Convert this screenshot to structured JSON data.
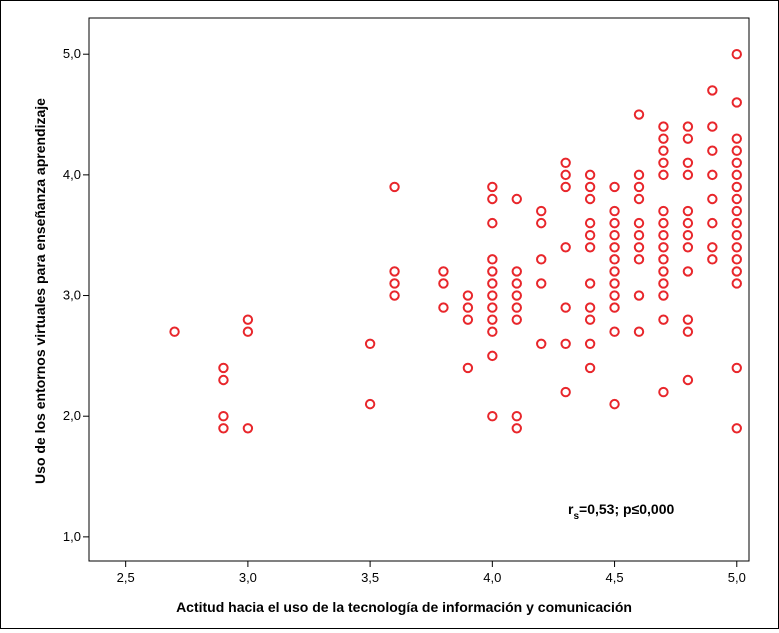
{
  "chart_data": {
    "type": "scatter",
    "xlabel": "Actitud hacia el uso de la tecnología de información y comunicación",
    "ylabel": "Uso de los entornos virtuales para enseñanza aprendizaje",
    "xlim": [
      2.35,
      5.05
    ],
    "ylim": [
      0.8,
      5.3
    ],
    "x_ticks": [
      "2,5",
      "3,0",
      "3,5",
      "4,0",
      "4,5",
      "5,0"
    ],
    "x_tick_values": [
      2.5,
      3.0,
      3.5,
      4.0,
      4.5,
      5.0
    ],
    "y_ticks": [
      "1,0",
      "2,0",
      "3,0",
      "4,0",
      "5,0"
    ],
    "y_tick_values": [
      1.0,
      2.0,
      3.0,
      4.0,
      5.0
    ],
    "grid": false,
    "marker_color": "#e8262b",
    "annotation": {
      "main": "r",
      "sub": "s",
      "rest": "=0,53; p≤0,000"
    },
    "points": [
      {
        "x": 2.7,
        "y": 2.7
      },
      {
        "x": 2.9,
        "y": 2.4
      },
      {
        "x": 2.9,
        "y": 2.3
      },
      {
        "x": 2.9,
        "y": 2.0
      },
      {
        "x": 2.9,
        "y": 1.9
      },
      {
        "x": 3.0,
        "y": 2.8
      },
      {
        "x": 3.0,
        "y": 2.7
      },
      {
        "x": 3.0,
        "y": 1.9
      },
      {
        "x": 3.5,
        "y": 2.6
      },
      {
        "x": 3.5,
        "y": 2.1
      },
      {
        "x": 3.6,
        "y": 3.9
      },
      {
        "x": 3.6,
        "y": 3.2
      },
      {
        "x": 3.6,
        "y": 3.1
      },
      {
        "x": 3.6,
        "y": 3.0
      },
      {
        "x": 3.8,
        "y": 3.2
      },
      {
        "x": 3.8,
        "y": 3.1
      },
      {
        "x": 3.8,
        "y": 2.9
      },
      {
        "x": 3.9,
        "y": 3.0
      },
      {
        "x": 3.9,
        "y": 2.9
      },
      {
        "x": 3.9,
        "y": 2.8
      },
      {
        "x": 3.9,
        "y": 2.4
      },
      {
        "x": 4.0,
        "y": 3.9
      },
      {
        "x": 4.0,
        "y": 3.8
      },
      {
        "x": 4.0,
        "y": 3.6
      },
      {
        "x": 4.0,
        "y": 3.3
      },
      {
        "x": 4.0,
        "y": 3.2
      },
      {
        "x": 4.0,
        "y": 3.1
      },
      {
        "x": 4.0,
        "y": 3.0
      },
      {
        "x": 4.0,
        "y": 2.9
      },
      {
        "x": 4.0,
        "y": 2.8
      },
      {
        "x": 4.0,
        "y": 2.7
      },
      {
        "x": 4.0,
        "y": 2.5
      },
      {
        "x": 4.0,
        "y": 2.0
      },
      {
        "x": 4.1,
        "y": 3.8
      },
      {
        "x": 4.1,
        "y": 3.2
      },
      {
        "x": 4.1,
        "y": 3.1
      },
      {
        "x": 4.1,
        "y": 3.0
      },
      {
        "x": 4.1,
        "y": 2.9
      },
      {
        "x": 4.1,
        "y": 2.8
      },
      {
        "x": 4.1,
        "y": 2.0
      },
      {
        "x": 4.1,
        "y": 1.9
      },
      {
        "x": 4.2,
        "y": 3.7
      },
      {
        "x": 4.2,
        "y": 3.6
      },
      {
        "x": 4.2,
        "y": 3.3
      },
      {
        "x": 4.2,
        "y": 3.1
      },
      {
        "x": 4.2,
        "y": 2.6
      },
      {
        "x": 4.3,
        "y": 4.1
      },
      {
        "x": 4.3,
        "y": 4.0
      },
      {
        "x": 4.3,
        "y": 3.9
      },
      {
        "x": 4.3,
        "y": 3.4
      },
      {
        "x": 4.3,
        "y": 2.9
      },
      {
        "x": 4.3,
        "y": 2.6
      },
      {
        "x": 4.3,
        "y": 2.2
      },
      {
        "x": 4.4,
        "y": 4.0
      },
      {
        "x": 4.4,
        "y": 3.9
      },
      {
        "x": 4.4,
        "y": 3.8
      },
      {
        "x": 4.4,
        "y": 3.6
      },
      {
        "x": 4.4,
        "y": 3.5
      },
      {
        "x": 4.4,
        "y": 3.4
      },
      {
        "x": 4.4,
        "y": 3.1
      },
      {
        "x": 4.4,
        "y": 2.9
      },
      {
        "x": 4.4,
        "y": 2.8
      },
      {
        "x": 4.4,
        "y": 2.6
      },
      {
        "x": 4.4,
        "y": 2.4
      },
      {
        "x": 4.5,
        "y": 3.9
      },
      {
        "x": 4.5,
        "y": 3.7
      },
      {
        "x": 4.5,
        "y": 3.6
      },
      {
        "x": 4.5,
        "y": 3.5
      },
      {
        "x": 4.5,
        "y": 3.4
      },
      {
        "x": 4.5,
        "y": 3.3
      },
      {
        "x": 4.5,
        "y": 3.2
      },
      {
        "x": 4.5,
        "y": 3.1
      },
      {
        "x": 4.5,
        "y": 3.0
      },
      {
        "x": 4.5,
        "y": 2.9
      },
      {
        "x": 4.5,
        "y": 2.7
      },
      {
        "x": 4.5,
        "y": 2.1
      },
      {
        "x": 4.6,
        "y": 4.5
      },
      {
        "x": 4.6,
        "y": 4.0
      },
      {
        "x": 4.6,
        "y": 3.9
      },
      {
        "x": 4.6,
        "y": 3.8
      },
      {
        "x": 4.6,
        "y": 3.6
      },
      {
        "x": 4.6,
        "y": 3.5
      },
      {
        "x": 4.6,
        "y": 3.4
      },
      {
        "x": 4.6,
        "y": 3.3
      },
      {
        "x": 4.6,
        "y": 3.0
      },
      {
        "x": 4.6,
        "y": 2.7
      },
      {
        "x": 4.7,
        "y": 4.4
      },
      {
        "x": 4.7,
        "y": 4.3
      },
      {
        "x": 4.7,
        "y": 4.2
      },
      {
        "x": 4.7,
        "y": 4.1
      },
      {
        "x": 4.7,
        "y": 4.0
      },
      {
        "x": 4.7,
        "y": 3.7
      },
      {
        "x": 4.7,
        "y": 3.6
      },
      {
        "x": 4.7,
        "y": 3.5
      },
      {
        "x": 4.7,
        "y": 3.4
      },
      {
        "x": 4.7,
        "y": 3.3
      },
      {
        "x": 4.7,
        "y": 3.2
      },
      {
        "x": 4.7,
        "y": 3.1
      },
      {
        "x": 4.7,
        "y": 3.0
      },
      {
        "x": 4.7,
        "y": 2.8
      },
      {
        "x": 4.7,
        "y": 2.2
      },
      {
        "x": 4.8,
        "y": 4.4
      },
      {
        "x": 4.8,
        "y": 4.3
      },
      {
        "x": 4.8,
        "y": 4.1
      },
      {
        "x": 4.8,
        "y": 4.0
      },
      {
        "x": 4.8,
        "y": 3.7
      },
      {
        "x": 4.8,
        "y": 3.6
      },
      {
        "x": 4.8,
        "y": 3.5
      },
      {
        "x": 4.8,
        "y": 3.4
      },
      {
        "x": 4.8,
        "y": 3.2
      },
      {
        "x": 4.8,
        "y": 2.8
      },
      {
        "x": 4.8,
        "y": 2.7
      },
      {
        "x": 4.8,
        "y": 2.3
      },
      {
        "x": 4.9,
        "y": 4.7
      },
      {
        "x": 4.9,
        "y": 4.4
      },
      {
        "x": 4.9,
        "y": 4.2
      },
      {
        "x": 4.9,
        "y": 4.0
      },
      {
        "x": 4.9,
        "y": 3.8
      },
      {
        "x": 4.9,
        "y": 3.6
      },
      {
        "x": 4.9,
        "y": 3.4
      },
      {
        "x": 4.9,
        "y": 3.3
      },
      {
        "x": 5.0,
        "y": 5.0
      },
      {
        "x": 5.0,
        "y": 4.6
      },
      {
        "x": 5.0,
        "y": 4.3
      },
      {
        "x": 5.0,
        "y": 4.2
      },
      {
        "x": 5.0,
        "y": 4.1
      },
      {
        "x": 5.0,
        "y": 4.0
      },
      {
        "x": 5.0,
        "y": 3.9
      },
      {
        "x": 5.0,
        "y": 3.8
      },
      {
        "x": 5.0,
        "y": 3.7
      },
      {
        "x": 5.0,
        "y": 3.6
      },
      {
        "x": 5.0,
        "y": 3.5
      },
      {
        "x": 5.0,
        "y": 3.4
      },
      {
        "x": 5.0,
        "y": 3.3
      },
      {
        "x": 5.0,
        "y": 3.2
      },
      {
        "x": 5.0,
        "y": 3.1
      },
      {
        "x": 5.0,
        "y": 2.4
      },
      {
        "x": 5.0,
        "y": 1.9
      }
    ]
  }
}
